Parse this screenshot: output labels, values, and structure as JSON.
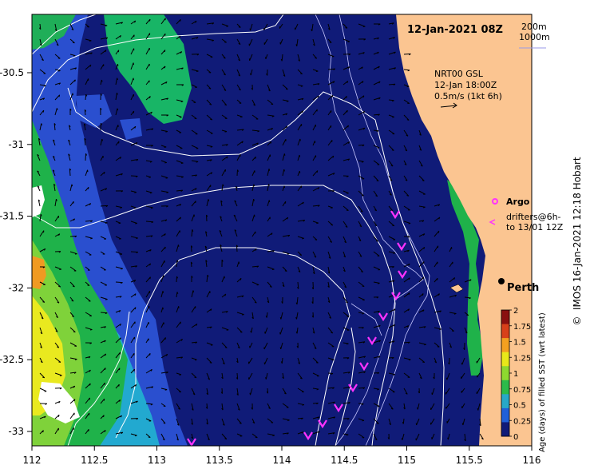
{
  "title": "12-Jan-2021 08Z",
  "depth_legend": [
    "200m",
    "1000m"
  ],
  "velocity_legend": {
    "line1": "NRT00 GSL",
    "line2": "12-Jan 18:00Z",
    "line3": "0.5m/s (1kt 6h)"
  },
  "argo_label": "Argo",
  "drifters_line1": "drifters@6h-",
  "drifters_line2": "to 13/01 12Z",
  "city_label": "Perth",
  "credit": "IMOS 16-Jan-2021 12:18 Hobart",
  "copyright_symbol": "©",
  "x_ticks": [
    "112",
    "112.5",
    "113",
    "113.5",
    "114",
    "114.5",
    "115",
    "115.5",
    "116"
  ],
  "y_ticks": [
    "-30.5",
    "-31",
    "-31.5",
    "-32",
    "-32.5",
    "-33"
  ],
  "colorbar": {
    "title": "Age (days) of filled SST (wrt latest)",
    "ticks": [
      "2",
      "1.75",
      "1.5",
      "1.25",
      "1",
      "0.75",
      "0.5",
      "0.25",
      "0"
    ],
    "colors": [
      "#8a1010",
      "#d8401a",
      "#f3a020",
      "#e8e81a",
      "#8ed830",
      "#2cba4a",
      "#28a8c8",
      "#2060d8",
      "#101b78"
    ]
  },
  "colors": {
    "ocean": "#101b78",
    "land": "#fbc591",
    "drifter": "#ff33ff",
    "contour": "#ffffff"
  }
}
